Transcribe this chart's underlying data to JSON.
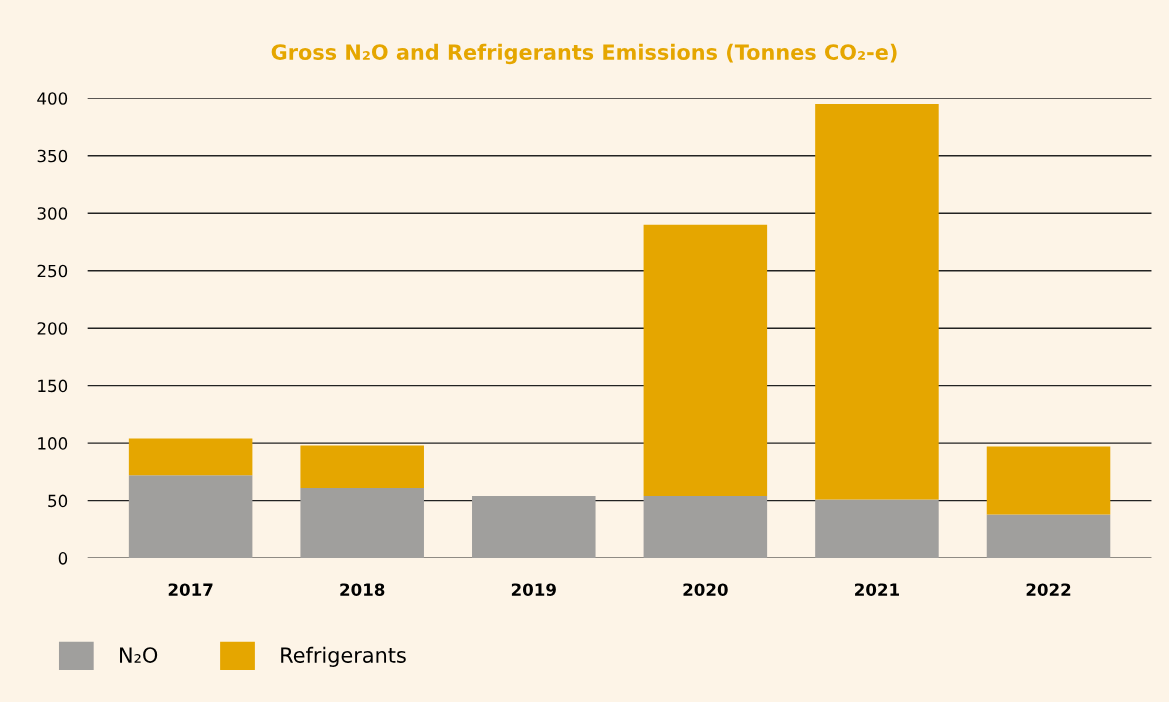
{
  "chart_data": {
    "type": "bar",
    "title": "Gross N₂O and Refrigerants Emissions (Tonnes CO₂-e)",
    "categories": [
      "2017",
      "2018",
      "2019",
      "2020",
      "2021",
      "2022"
    ],
    "stacked": true,
    "series": [
      {
        "name": "N₂O",
        "color": "#a09f9d",
        "values": [
          72,
          61,
          54,
          54,
          51,
          38
        ]
      },
      {
        "name": "Refrigerants",
        "color": "#e5a600",
        "values": [
          32,
          37,
          0,
          236,
          344,
          59
        ]
      }
    ],
    "ylim": [
      0,
      400
    ],
    "yticks": [
      0,
      50,
      100,
      150,
      200,
      250,
      300,
      350,
      400
    ],
    "grid": "y",
    "legend": "bottom left"
  }
}
